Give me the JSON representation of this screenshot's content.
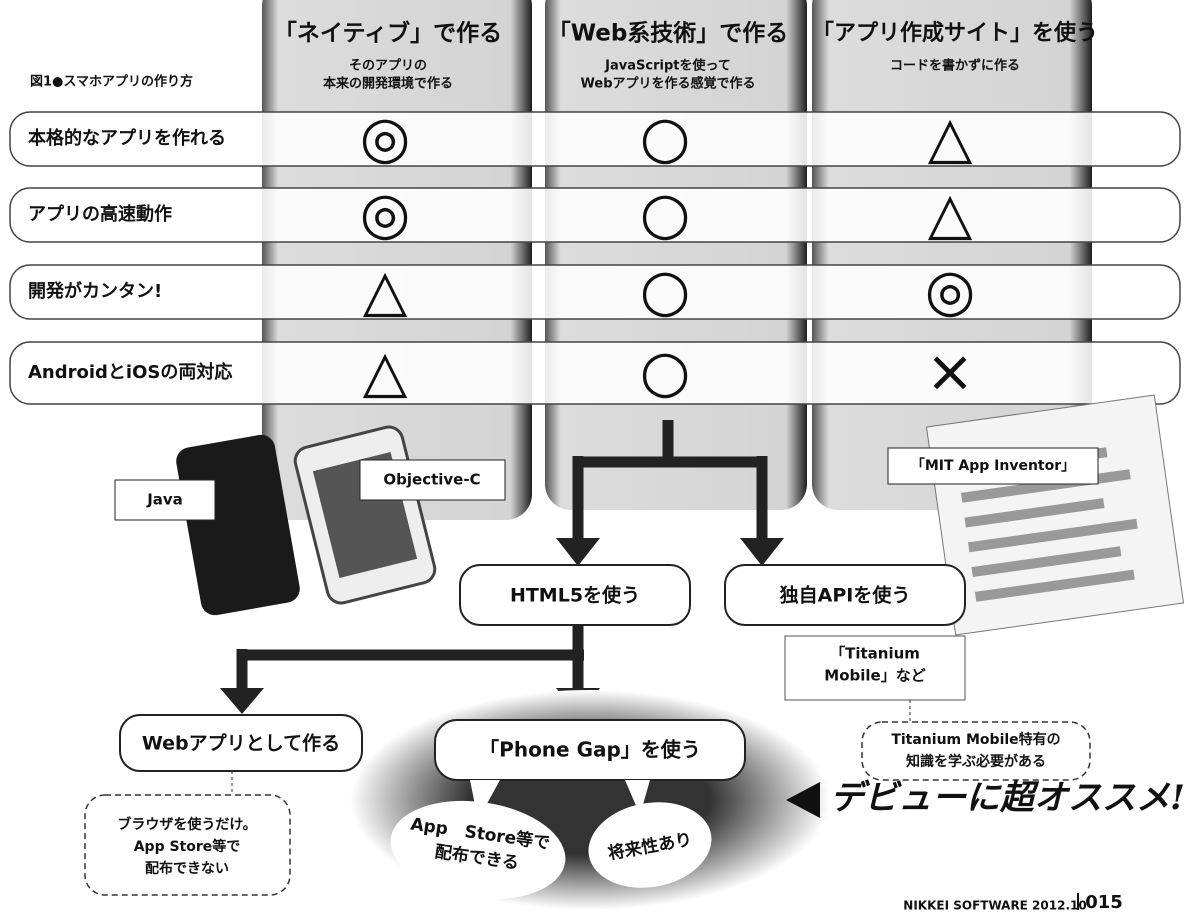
{
  "figure_label": "図1●スマホアプリの作り方",
  "columns": [
    {
      "title": "「ネイティブ」で作る",
      "subtitle": [
        "そのアプリの",
        "本来の開発環境で作る"
      ]
    },
    {
      "title": "「Web系技術」で作る",
      "subtitle": [
        "JavaScriptを使って",
        "Webアプリを作る感覚で作る"
      ]
    },
    {
      "title": "「アプリ作成サイト」を使う",
      "subtitle": [
        "コードを書かずに作る"
      ]
    }
  ],
  "rows": [
    {
      "label": "本格的なアプリを作れる",
      "ratings": [
        "◎",
        "○",
        "△"
      ]
    },
    {
      "label": "アプリの高速動作",
      "ratings": [
        "◎",
        "○",
        "△"
      ]
    },
    {
      "label": "開発がカンタン!",
      "ratings": [
        "△",
        "○",
        "◎"
      ]
    },
    {
      "label": "AndroidとiOSの両対応",
      "ratings": [
        "△",
        "○",
        "×"
      ]
    }
  ],
  "tags": {
    "java": "Java",
    "objc": "Objective-C",
    "mit": "「MIT App Inventor」"
  },
  "nodes": {
    "html5": "HTML5を使う",
    "api": "独自APIを使う",
    "webapp": "Webアプリとして作る",
    "phonegap": "「Phone Gap」を使う"
  },
  "notes": {
    "titanium": [
      "「Titanium",
      "Mobile」など"
    ],
    "titanium_knowledge": [
      "Titanium Mobile特有の",
      "知識を学ぶ必要がある"
    ],
    "browser": [
      "ブラウザを使うだけ。",
      "App Store等で",
      "配布できない"
    ]
  },
  "bubbles": {
    "appstore": [
      "App　Store等で",
      "配布できる"
    ],
    "future": "将来性あり"
  },
  "callout": "デビューに超オススメ!",
  "footer": {
    "source": "NIKKEI SOFTWARE 2012.10",
    "page": "015"
  }
}
